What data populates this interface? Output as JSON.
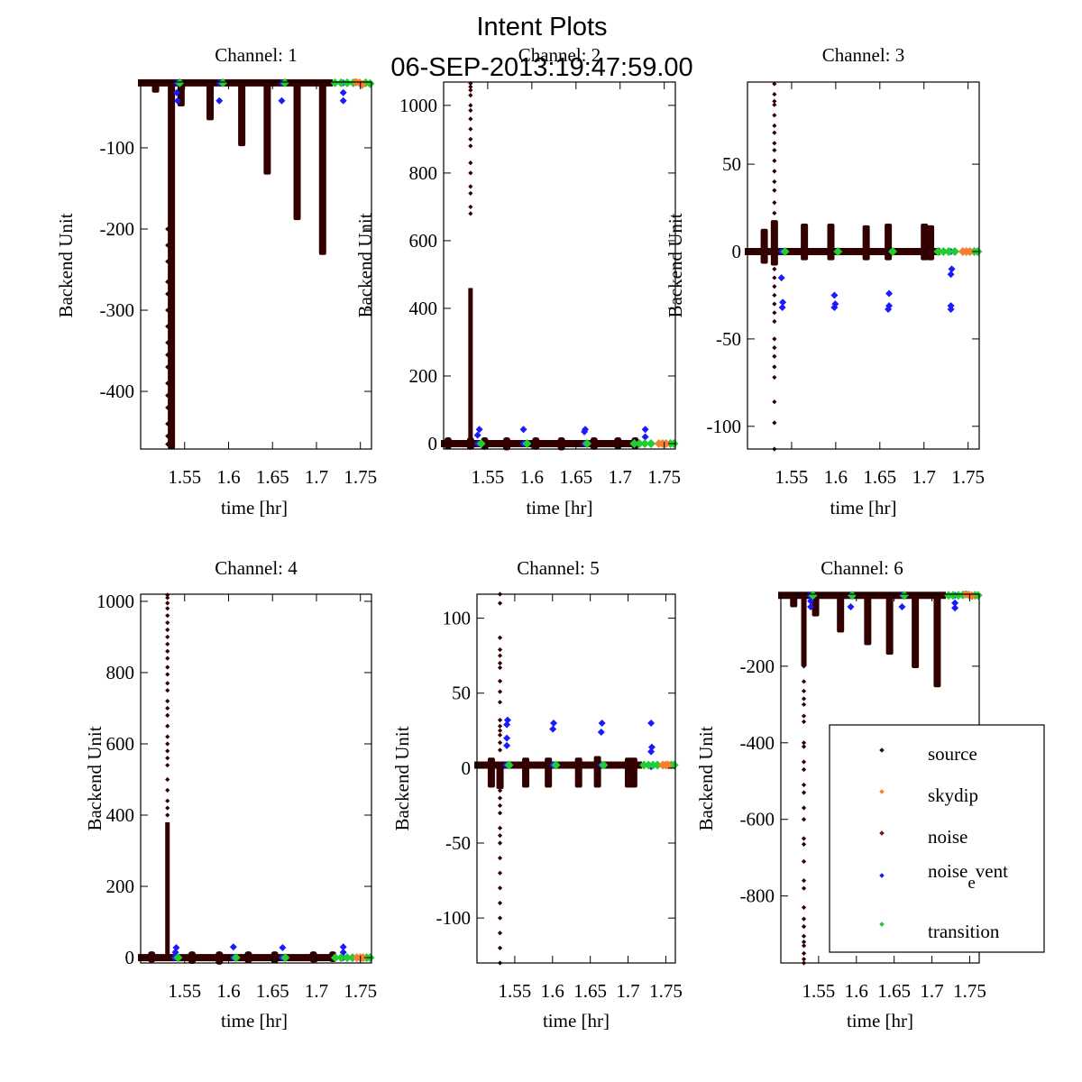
{
  "figure": {
    "title": "Intent Plots",
    "subtitle": "06-SEP-2013:19:47:59.00"
  },
  "chart_data": [
    {
      "type": "scatter",
      "title": "Channel: 1",
      "xlabel": "time [hr]",
      "ylabel": "Backend Unit",
      "xlim": [
        1.5,
        1.7626
      ],
      "ylim": [
        -471,
        -19
      ],
      "xticks": [
        1.55,
        1.6,
        1.65,
        1.7,
        1.75
      ],
      "xtick_labels": [
        "1.55",
        "1.6",
        "1.65",
        "1.7",
        "1.75"
      ],
      "yticks": [
        -100,
        -200,
        -300,
        -400
      ],
      "ytick_labels": [
        "-100",
        "-200",
        "-300",
        "-400"
      ],
      "baseline": -20,
      "source_dips": [
        [
          1.517,
          -32
        ],
        [
          1.535,
          -471
        ],
        [
          1.546,
          -49
        ],
        [
          1.579,
          -66
        ],
        [
          1.615,
          -98
        ],
        [
          1.644,
          -133
        ],
        [
          1.678,
          -189
        ],
        [
          1.707,
          -232
        ]
      ],
      "source_points_x": 1.5305,
      "source_points_y": [
        -200,
        -220,
        -240,
        -265,
        -280,
        -300,
        -320,
        -340,
        -355,
        -370,
        -390,
        -405,
        -420,
        -440,
        -455,
        -465
      ],
      "noise_event": [
        [
          1.541,
          -20
        ],
        [
          1.541,
          -32
        ],
        [
          1.542,
          -42
        ],
        [
          1.5895,
          -20
        ],
        [
          1.5895,
          -42
        ],
        [
          1.6605,
          -20
        ],
        [
          1.6605,
          -42
        ],
        [
          1.7305,
          -20
        ],
        [
          1.7305,
          -32
        ],
        [
          1.7305,
          -42
        ]
      ],
      "transition": [
        [
          1.5445,
          -20
        ],
        [
          1.5935,
          -20
        ],
        [
          1.664,
          -20
        ],
        [
          1.721,
          -20
        ],
        [
          1.728,
          -20
        ],
        [
          1.735,
          -20
        ],
        [
          1.742,
          -20
        ],
        [
          1.756,
          -20
        ],
        [
          1.761,
          -21
        ]
      ],
      "skydip": [
        [
          1.745,
          -19
        ],
        [
          1.749,
          -20
        ],
        [
          1.752,
          -22
        ]
      ]
    },
    {
      "type": "scatter",
      "title": "Channel: 2",
      "xlabel": "time [hr]",
      "ylabel": "Backend Unit",
      "xlim": [
        1.5,
        1.7626
      ],
      "ylim": [
        -16,
        1069
      ],
      "xticks": [
        1.55,
        1.6,
        1.65,
        1.7,
        1.75
      ],
      "xtick_labels": [
        "1.55",
        "1.6",
        "1.65",
        "1.7",
        "1.75"
      ],
      "yticks": [
        1000,
        800,
        600,
        400,
        200,
        0
      ],
      "ytick_labels": [
        "1000",
        "800",
        "600",
        "400",
        "200",
        "0"
      ],
      "baseline": 0,
      "source_dips": [],
      "source_spike": {
        "x": 1.5305,
        "top": 460
      },
      "source_points_x": 1.5305,
      "source_points_y": [
        1065,
        1055,
        1045,
        1030,
        1000,
        985,
        960,
        930,
        900,
        880,
        830,
        800,
        760,
        740,
        700,
        680
      ],
      "small_bumps": [
        [
          1.505,
          8
        ],
        [
          1.5305,
          10
        ],
        [
          1.5465,
          10
        ],
        [
          1.5715,
          12
        ],
        [
          1.6045,
          10
        ],
        [
          1.6335,
          12
        ],
        [
          1.6705,
          10
        ],
        [
          1.6975,
          8
        ],
        [
          1.717,
          8
        ]
      ],
      "noise_event": [
        [
          1.5385,
          0
        ],
        [
          1.5385,
          25
        ],
        [
          1.5405,
          42
        ],
        [
          1.5905,
          0
        ],
        [
          1.5905,
          42
        ],
        [
          1.6595,
          0
        ],
        [
          1.6595,
          35
        ],
        [
          1.6605,
          42
        ],
        [
          1.7285,
          0
        ],
        [
          1.7285,
          20
        ],
        [
          1.7285,
          42
        ]
      ],
      "transition": [
        [
          1.5425,
          0
        ],
        [
          1.5945,
          0
        ],
        [
          1.6625,
          0
        ],
        [
          1.716,
          0
        ],
        [
          1.722,
          0
        ],
        [
          1.728,
          0
        ],
        [
          1.735,
          0
        ],
        [
          1.757,
          0
        ],
        [
          1.761,
          0
        ]
      ],
      "skydip": [
        [
          1.744,
          0
        ],
        [
          1.748,
          0
        ],
        [
          1.752,
          0
        ]
      ]
    },
    {
      "type": "scatter",
      "title": "Channel: 3",
      "xlabel": "time [hr]",
      "ylabel": "Backend Unit",
      "xlim": [
        1.5,
        1.7626
      ],
      "ylim": [
        -113,
        97
      ],
      "xticks": [
        1.55,
        1.6,
        1.65,
        1.7,
        1.75
      ],
      "xtick_labels": [
        "1.55",
        "1.6",
        "1.65",
        "1.7",
        "1.75"
      ],
      "yticks": [
        50,
        0,
        -50,
        -100
      ],
      "ytick_labels": [
        "50",
        "0",
        "-50",
        "-100"
      ],
      "baseline": 0,
      "source_spikes": [
        [
          1.519,
          13,
          -7
        ],
        [
          1.5305,
          18,
          -8
        ],
        [
          1.5645,
          16,
          -5
        ],
        [
          1.5945,
          16,
          -5
        ],
        [
          1.6345,
          15,
          -5
        ],
        [
          1.6595,
          16,
          -5
        ],
        [
          1.7005,
          16,
          -5
        ],
        [
          1.7075,
          15,
          -5
        ]
      ],
      "source_points_x": 1.5305,
      "source_points_y": [
        96,
        90,
        86,
        84,
        78,
        72,
        68,
        62,
        58,
        52,
        46,
        40,
        35,
        28,
        22,
        -10,
        -15,
        -20,
        -25,
        -30,
        -35,
        -40,
        -50,
        -55,
        -60,
        -66,
        -72,
        -86,
        -98,
        -113
      ],
      "noise_event": [
        [
          1.5385,
          0
        ],
        [
          1.5385,
          -15
        ],
        [
          1.54,
          -29
        ],
        [
          1.5395,
          -32
        ],
        [
          1.5985,
          -25
        ],
        [
          1.5995,
          -30
        ],
        [
          1.5985,
          -32
        ],
        [
          1.6605,
          -24
        ],
        [
          1.6605,
          -31
        ],
        [
          1.6595,
          -33
        ],
        [
          1.7305,
          0
        ],
        [
          1.7315,
          -10
        ],
        [
          1.7305,
          -13
        ],
        [
          1.7305,
          -31
        ],
        [
          1.7305,
          -33
        ]
      ],
      "transition": [
        [
          1.5425,
          0
        ],
        [
          1.6025,
          0
        ],
        [
          1.6645,
          0
        ],
        [
          1.716,
          0
        ],
        [
          1.722,
          0
        ],
        [
          1.728,
          0
        ],
        [
          1.735,
          0
        ],
        [
          1.757,
          0
        ],
        [
          1.761,
          0
        ]
      ],
      "skydip": [
        [
          1.744,
          0
        ],
        [
          1.748,
          0
        ],
        [
          1.752,
          0
        ]
      ]
    },
    {
      "type": "scatter",
      "title": "Channel: 4",
      "xlabel": "time [hr]",
      "ylabel": "Backend Unit",
      "xlim": [
        1.5,
        1.7626
      ],
      "ylim": [
        -15,
        1020
      ],
      "xticks": [
        1.55,
        1.6,
        1.65,
        1.7,
        1.75
      ],
      "xtick_labels": [
        "1.55",
        "1.6",
        "1.65",
        "1.7",
        "1.75"
      ],
      "yticks": [
        1000,
        800,
        600,
        400,
        200,
        0
      ],
      "ytick_labels": [
        "1000",
        "800",
        "600",
        "400",
        "200",
        "0"
      ],
      "baseline": 0,
      "source_spike": {
        "x": 1.5305,
        "top": 380
      },
      "source_points_x": 1.5305,
      "source_points_y": [
        1018,
        1010,
        995,
        980,
        960,
        940,
        920,
        900,
        880,
        860,
        840,
        815,
        795,
        770,
        750,
        720,
        700,
        680,
        650,
        620,
        600,
        580,
        560,
        540,
        500,
        470,
        440,
        420,
        400
      ],
      "small_bumps": [
        [
          1.5125,
          6
        ],
        [
          1.5585,
          10
        ],
        [
          1.5895,
          12
        ],
        [
          1.6225,
          8
        ],
        [
          1.6525,
          8
        ],
        [
          1.6965,
          -6
        ],
        [
          1.7185,
          -5
        ]
      ],
      "noise_event": [
        [
          1.5385,
          0
        ],
        [
          1.5395,
          15
        ],
        [
          1.5405,
          28
        ],
        [
          1.6055,
          0
        ],
        [
          1.6055,
          30
        ],
        [
          1.6605,
          0
        ],
        [
          1.6615,
          28
        ],
        [
          1.7305,
          0
        ],
        [
          1.7305,
          15
        ],
        [
          1.7305,
          30
        ]
      ],
      "transition": [
        [
          1.5425,
          0
        ],
        [
          1.6085,
          0
        ],
        [
          1.6645,
          0
        ],
        [
          1.7215,
          0
        ],
        [
          1.728,
          0
        ],
        [
          1.735,
          0
        ],
        [
          1.741,
          0
        ],
        [
          1.757,
          0
        ],
        [
          1.761,
          0
        ]
      ],
      "skydip": [
        [
          1.746,
          0
        ],
        [
          1.75,
          0
        ],
        [
          1.753,
          0
        ]
      ]
    },
    {
      "type": "scatter",
      "title": "Channel: 5",
      "xlabel": "time [hr]",
      "ylabel": "Backend Unit",
      "xlim": [
        1.5,
        1.7626
      ],
      "ylim": [
        -130,
        116
      ],
      "xticks": [
        1.55,
        1.6,
        1.65,
        1.7,
        1.75
      ],
      "xtick_labels": [
        "1.55",
        "1.6",
        "1.65",
        "1.7",
        "1.75"
      ],
      "yticks": [
        100,
        50,
        0,
        -50,
        -100
      ],
      "ytick_labels": [
        "100",
        "50",
        "0",
        "-50",
        "-100"
      ],
      "baseline": 2,
      "source_spikes": [
        [
          1.519,
          7,
          -13
        ],
        [
          1.5305,
          4,
          -14
        ],
        [
          1.5645,
          7,
          -13
        ],
        [
          1.5945,
          7,
          -13
        ],
        [
          1.6345,
          7,
          -13
        ],
        [
          1.6595,
          8,
          -13
        ],
        [
          1.7005,
          7,
          -13
        ],
        [
          1.7075,
          7,
          -13
        ]
      ],
      "source_points_x": 1.5305,
      "source_points_y": [
        116,
        110,
        87,
        79,
        75,
        70,
        67,
        58,
        51,
        44,
        32,
        28,
        25,
        22,
        17,
        12,
        -10,
        -15,
        -20,
        -25,
        -30,
        -40,
        -45,
        -50,
        -60,
        -70,
        -80,
        -90,
        -100,
        -110,
        -120,
        -130
      ],
      "noise_event": [
        [
          1.5385,
          2
        ],
        [
          1.5395,
          15
        ],
        [
          1.5395,
          20
        ],
        [
          1.5395,
          29
        ],
        [
          1.5405,
          32
        ],
        [
          1.6005,
          2
        ],
        [
          1.6005,
          26
        ],
        [
          1.6015,
          30
        ],
        [
          1.6645,
          2
        ],
        [
          1.6645,
          24
        ],
        [
          1.6655,
          30
        ],
        [
          1.7305,
          1
        ],
        [
          1.7305,
          11
        ],
        [
          1.7315,
          14
        ],
        [
          1.7305,
          30
        ]
      ],
      "transition": [
        [
          1.5425,
          2
        ],
        [
          1.6045,
          2
        ],
        [
          1.6675,
          2
        ],
        [
          1.721,
          2
        ],
        [
          1.727,
          2
        ],
        [
          1.733,
          2
        ],
        [
          1.739,
          2
        ],
        [
          1.757,
          2
        ],
        [
          1.761,
          2
        ]
      ],
      "skydip": [
        [
          1.746,
          2
        ],
        [
          1.75,
          2
        ],
        [
          1.753,
          2
        ]
      ]
    },
    {
      "type": "scatter",
      "title": "Channel: 6",
      "xlabel": "time [hr]",
      "ylabel": "Backend Unit",
      "xlim": [
        1.5,
        1.7626
      ],
      "ylim": [
        -975,
        -12
      ],
      "xticks": [
        1.55,
        1.6,
        1.65,
        1.7,
        1.75
      ],
      "xtick_labels": [
        "1.55",
        "1.6",
        "1.65",
        "1.7",
        "1.75"
      ],
      "yticks": [
        -200,
        -400,
        -600,
        -800
      ],
      "ytick_labels": [
        "-200",
        "-400",
        "-600",
        "-800"
      ],
      "baseline": -15,
      "source_dips": [
        [
          1.517,
          -45
        ],
        [
          1.5305,
          -975
        ],
        [
          1.546,
          -70
        ],
        [
          1.579,
          -115
        ],
        [
          1.615,
          -190
        ],
        [
          1.644,
          -255
        ],
        [
          1.678,
          -230
        ],
        [
          1.707,
          -290
        ]
      ],
      "source_dips_fixed": [
        [
          1.517,
          -46
        ],
        [
          1.546,
          -70
        ],
        [
          1.579,
          -112
        ],
        [
          1.615,
          -145
        ],
        [
          1.644,
          -170
        ],
        [
          1.678,
          -205
        ],
        [
          1.707,
          -255
        ]
      ],
      "source_points_x": 1.5305,
      "source_points_y": [
        -200,
        -240,
        -265,
        -285,
        -300,
        -330,
        -345,
        -400,
        -410,
        -450,
        -470,
        -510,
        -530,
        -570,
        -600,
        -650,
        -665,
        -710,
        -760,
        -780,
        -830,
        -860,
        -880,
        -905,
        -920,
        -930,
        -950,
        -965,
        -975
      ],
      "noise_event": [
        [
          1.5385,
          -15
        ],
        [
          1.5395,
          -30
        ],
        [
          1.5395,
          -45
        ],
        [
          1.5925,
          -15
        ],
        [
          1.5925,
          -45
        ],
        [
          1.6605,
          -15
        ],
        [
          1.6605,
          -45
        ],
        [
          1.7305,
          -15
        ],
        [
          1.7305,
          -35
        ],
        [
          1.7305,
          -48
        ]
      ],
      "transition": [
        [
          1.5425,
          -15
        ],
        [
          1.5945,
          -15
        ],
        [
          1.6635,
          -15
        ],
        [
          1.722,
          -15
        ],
        [
          1.728,
          -15
        ],
        [
          1.735,
          -15
        ],
        [
          1.741,
          -14
        ],
        [
          1.757,
          -15
        ],
        [
          1.761,
          -15
        ]
      ],
      "skydip": [
        [
          1.745,
          -12
        ],
        [
          1.749,
          -14
        ],
        [
          1.753,
          -16
        ]
      ]
    }
  ],
  "legend": {
    "placement": "lower-right of Channel 6",
    "entries": [
      {
        "label": "source",
        "color": "#3d0a0a"
      },
      {
        "label": "skydip",
        "color": "#f08030"
      },
      {
        "label": "noise",
        "color": "#7a1515"
      },
      {
        "label": "noise",
        "sub": "e",
        "sup": "vent",
        "color": "#1020e0"
      },
      {
        "label": "transition",
        "color": "#20c040"
      }
    ]
  },
  "colors": {
    "source": "#330000",
    "skydip": "#f28030",
    "noise": "#7a1010",
    "noise_event": "#1a1aff",
    "transition": "#22cc33"
  }
}
